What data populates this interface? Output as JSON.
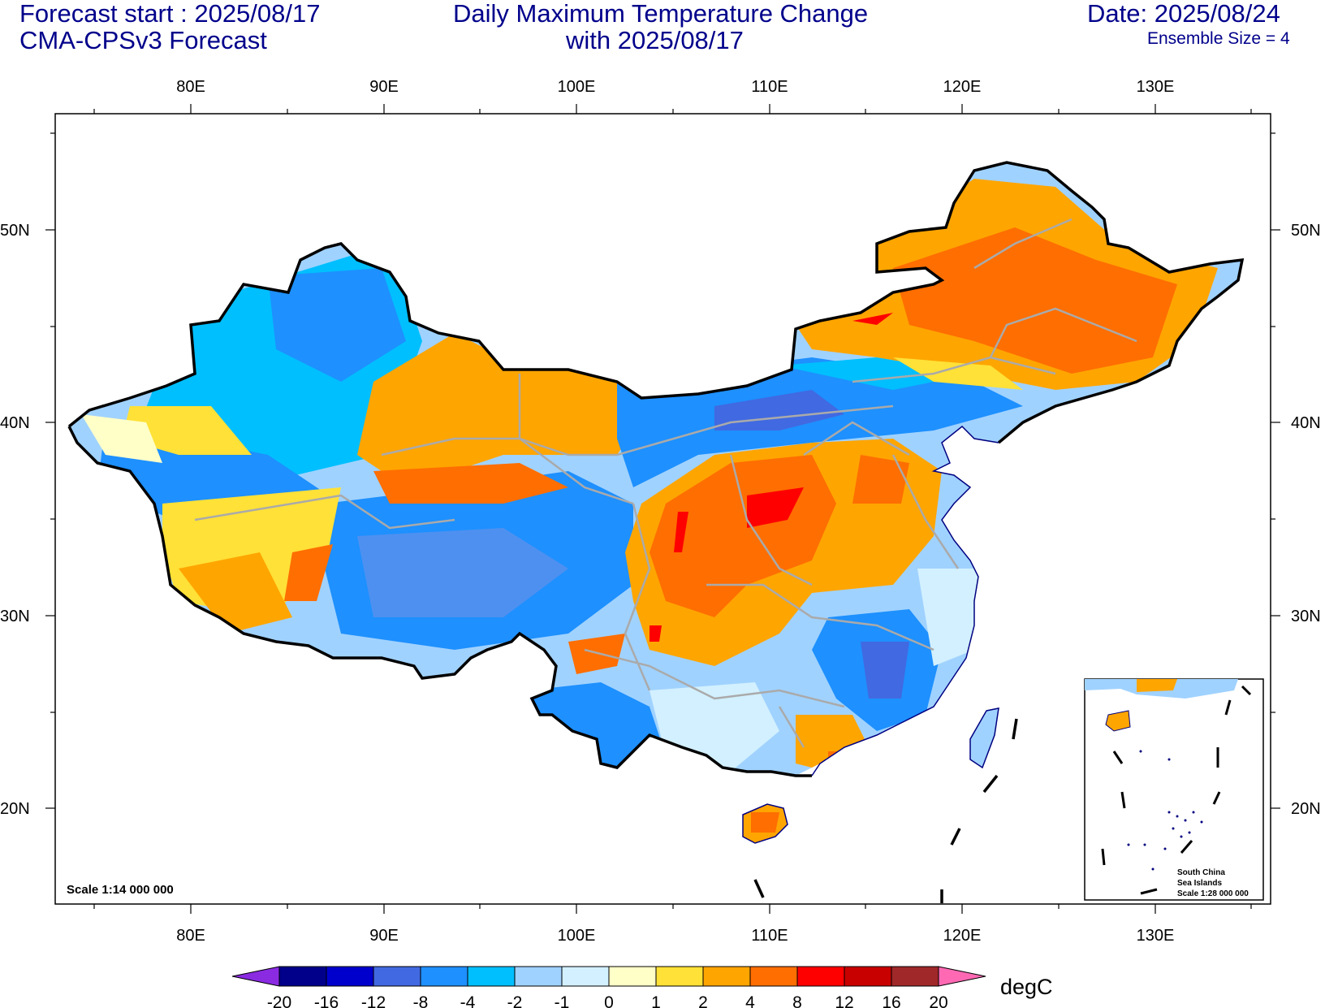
{
  "header": {
    "forecast_start": "Forecast start : 2025/08/17",
    "model": "CMA-CPSv3 Forecast",
    "title_line1": "Daily Maximum Temperature Change",
    "title_line2": "with 2025/08/17",
    "date": "Date: 2025/08/24",
    "ensemble": "Ensemble Size = 4"
  },
  "map": {
    "lon_ticks": [
      "80E",
      "90E",
      "100E",
      "110E",
      "120E",
      "130E"
    ],
    "lat_ticks": [
      "50N",
      "40N",
      "30N",
      "20N"
    ],
    "scale_label": "Scale 1:14 000 000",
    "inset": {
      "line1": "South China",
      "line2": "Sea Islands",
      "line3": "Scale 1:28 000 000"
    }
  },
  "colorbar": {
    "unit": "degC",
    "labels": [
      "-20",
      "-16",
      "-12",
      "-8",
      "-4",
      "-2",
      "-1",
      "0",
      "1",
      "2",
      "4",
      "8",
      "12",
      "16",
      "20"
    ],
    "colors": [
      "#00008b",
      "#0000cd",
      "#4169e1",
      "#1e90ff",
      "#00bfff",
      "#a0d2ff",
      "#d2f0ff",
      "#ffffc8",
      "#ffe137",
      "#ffa500",
      "#ff6e00",
      "#ff0000",
      "#c80000",
      "#a02828"
    ],
    "low_extend_color": "#8a2be2",
    "high_extend_color": "#ff69b4"
  }
}
